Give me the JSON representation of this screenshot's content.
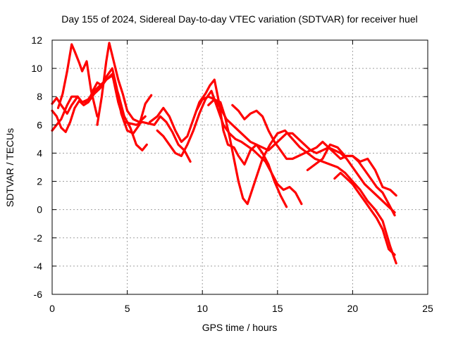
{
  "chart_data": {
    "type": "line",
    "title": "Day 155 of 2024, Sidereal Day-to-day VTEC variation (SDTVAR) for receiver huel",
    "xlabel": "GPS time / hours",
    "ylabel": "SDTVAR / TECUs",
    "xlim": [
      0,
      25
    ],
    "ylim": [
      -6,
      12
    ],
    "xticks": [
      "0",
      "5",
      "10",
      "15",
      "20",
      "25"
    ],
    "yticks": [
      "-6",
      "-4",
      "-2",
      "0",
      "2",
      "4",
      "6",
      "8",
      "10",
      "12"
    ],
    "grid": true,
    "color": "#ff0000",
    "series": [
      {
        "name": "s1",
        "x": [
          0.0,
          0.3,
          0.6,
          1.0,
          1.3,
          1.7,
          2.0,
          2.4,
          2.8,
          3.2,
          3.6,
          4.0,
          4.4,
          4.8,
          5.2,
          5.6,
          6.0,
          6.4,
          6.8,
          7.2,
          7.6,
          8.0,
          8.4,
          8.8,
          9.2
        ],
        "y": [
          7.5,
          7.9,
          7.4,
          6.8,
          7.4,
          8.0,
          7.6,
          7.8,
          8.4,
          8.8,
          9.2,
          9.6,
          7.6,
          6.2,
          6.1,
          6.0,
          6.2,
          6.1,
          6.0,
          6.6,
          6.2,
          5.5,
          4.6,
          4.2,
          3.4
        ]
      },
      {
        "name": "s2",
        "x": [
          0.0,
          0.3,
          0.6,
          1.0,
          1.3,
          1.7,
          2.0,
          2.4,
          2.8,
          3.2,
          3.6,
          4.0,
          4.4,
          4.8,
          5.2,
          5.6,
          6.0,
          6.3
        ],
        "y": [
          5.6,
          6.0,
          6.4,
          7.4,
          8.0,
          8.0,
          7.6,
          7.6,
          8.2,
          8.6,
          9.2,
          9.5,
          8.2,
          6.6,
          5.8,
          4.6,
          4.2,
          4.6
        ]
      },
      {
        "name": "s3",
        "x": [
          0.0,
          0.3,
          0.6,
          0.9,
          1.2,
          1.5,
          1.8,
          2.1,
          2.4,
          2.7,
          3.0,
          3.3,
          3.6,
          4.0,
          4.3,
          4.6,
          5.0,
          5.4,
          5.8,
          6.2,
          6.6
        ],
        "y": [
          7.0,
          6.6,
          5.8,
          5.5,
          6.2,
          7.2,
          7.7,
          7.4,
          7.6,
          8.4,
          9.0,
          8.8,
          9.4,
          10.0,
          8.6,
          6.8,
          5.6,
          5.4,
          6.0,
          7.5,
          8.1
        ]
      },
      {
        "name": "s4",
        "x": [
          0.4,
          0.7,
          1.0,
          1.3,
          1.5,
          1.8,
          2.0,
          2.3,
          2.6,
          3.0
        ],
        "y": [
          7.2,
          8.2,
          9.8,
          11.7,
          11.2,
          10.4,
          9.8,
          10.5,
          8.4,
          6.6
        ]
      },
      {
        "name": "s5",
        "x": [
          3.0,
          3.3,
          3.6,
          3.8,
          4.1,
          4.4,
          4.7,
          5.0,
          5.4,
          5.8,
          6.2
        ],
        "y": [
          6.0,
          8.0,
          10.5,
          11.8,
          10.5,
          9.2,
          8.2,
          7.0,
          6.4,
          6.2,
          6.6
        ]
      },
      {
        "name": "s6",
        "x": [
          6.5,
          7.0,
          7.4,
          7.8,
          8.2,
          8.6,
          9.0,
          9.4,
          9.8,
          10.2,
          10.5,
          10.8,
          11.1,
          11.4,
          11.7,
          12.1,
          12.4,
          12.8,
          13.2,
          13.6,
          14.0,
          14.4,
          14.8,
          15.2,
          15.6
        ],
        "y": [
          6.2,
          6.6,
          7.2,
          6.6,
          5.6,
          4.8,
          5.2,
          6.4,
          7.6,
          8.2,
          8.8,
          9.2,
          7.6,
          5.6,
          4.6,
          4.4,
          3.8,
          3.2,
          4.2,
          4.6,
          4.0,
          3.2,
          2.0,
          1.0,
          0.2
        ]
      },
      {
        "name": "s7",
        "x": [
          7.0,
          7.4,
          7.8,
          8.2,
          8.6,
          9.0,
          9.4,
          9.8,
          10.2,
          10.6,
          11.0,
          11.4,
          11.8,
          12.2,
          12.6,
          13.0,
          13.4,
          13.8,
          14.2,
          14.6,
          15.0,
          15.4,
          15.8,
          16.2,
          16.6
        ],
        "y": [
          5.6,
          5.2,
          4.6,
          4.0,
          3.8,
          4.6,
          5.6,
          6.8,
          7.8,
          8.4,
          7.2,
          6.0,
          5.4,
          5.0,
          4.8,
          4.5,
          4.2,
          3.8,
          3.4,
          2.6,
          1.8,
          1.4,
          1.6,
          1.2,
          0.4
        ]
      },
      {
        "name": "s8",
        "x": [
          9.6,
          10.0,
          10.4,
          10.8,
          11.2,
          11.6,
          12.0,
          12.4,
          12.8,
          13.2,
          13.6,
          14.0,
          14.4,
          14.8,
          15.2,
          15.6,
          16.0,
          16.4,
          16.8,
          17.2,
          17.6,
          18.0,
          18.4,
          18.8,
          19.2,
          19.6,
          20.0,
          20.4,
          20.8,
          21.2,
          21.6,
          22.0,
          22.4,
          22.8
        ],
        "y": [
          7.0,
          7.8,
          8.0,
          7.8,
          7.2,
          6.4,
          6.0,
          5.6,
          5.2,
          4.8,
          4.6,
          4.4,
          4.2,
          4.6,
          5.0,
          5.4,
          5.4,
          5.0,
          4.6,
          4.2,
          4.0,
          4.2,
          4.4,
          4.2,
          4.0,
          3.6,
          3.0,
          2.4,
          1.8,
          1.4,
          1.0,
          0.6,
          0.2,
          -0.2
        ]
      },
      {
        "name": "s9",
        "x": [
          10.4,
          10.8,
          11.2,
          11.5,
          11.8,
          12.1,
          12.4,
          12.7,
          13.0,
          13.5,
          14.0,
          14.5,
          15.0,
          15.5,
          16.0,
          16.5,
          17.0,
          17.5,
          18.0,
          18.5,
          19.0,
          19.5,
          20.0,
          20.5,
          21.0,
          21.5,
          22.0,
          22.5,
          22.9
        ],
        "y": [
          7.4,
          7.8,
          7.6,
          6.6,
          5.2,
          3.6,
          2.0,
          0.8,
          0.4,
          2.0,
          3.6,
          4.6,
          5.4,
          5.6,
          5.0,
          4.4,
          4.0,
          3.6,
          3.4,
          3.2,
          3.0,
          2.6,
          2.0,
          1.4,
          0.6,
          0.0,
          -0.8,
          -2.6,
          -3.8
        ]
      },
      {
        "name": "s10",
        "x": [
          12.0,
          12.4,
          12.8,
          13.2,
          13.6,
          14.0,
          14.4,
          14.8,
          15.2,
          15.6,
          16.0,
          16.4,
          16.8,
          17.2,
          17.6,
          18.0,
          18.4,
          18.8,
          19.2,
          19.6,
          20.0,
          20.4,
          20.8,
          21.2,
          21.6,
          22.0,
          22.4,
          22.8
        ],
        "y": [
          7.4,
          7.0,
          6.4,
          6.8,
          7.0,
          6.6,
          5.6,
          4.8,
          4.2,
          3.6,
          3.6,
          3.8,
          4.0,
          4.2,
          4.4,
          4.8,
          4.4,
          4.0,
          3.6,
          3.8,
          3.8,
          3.4,
          2.8,
          2.2,
          1.6,
          1.2,
          0.4,
          -0.4
        ]
      },
      {
        "name": "s11",
        "x": [
          17.0,
          17.5,
          18.0,
          18.5,
          19.0,
          19.5,
          20.0,
          20.5,
          21.0,
          21.5,
          22.0,
          22.5,
          22.9
        ],
        "y": [
          2.8,
          3.2,
          3.6,
          4.6,
          4.4,
          3.8,
          3.8,
          3.4,
          3.6,
          2.8,
          1.6,
          1.4,
          1.0
        ]
      },
      {
        "name": "s12",
        "x": [
          18.8,
          19.2,
          19.6,
          20.0,
          20.4,
          20.8,
          21.2,
          21.6,
          22.0,
          22.4,
          22.8
        ],
        "y": [
          2.2,
          2.6,
          2.2,
          1.8,
          1.2,
          0.6,
          0.0,
          -0.6,
          -1.4,
          -2.8,
          -3.2
        ]
      }
    ]
  }
}
